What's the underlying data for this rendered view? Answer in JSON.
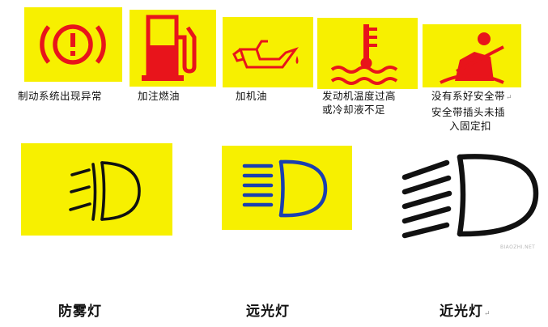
{
  "colors": {
    "panel": "#f7f000",
    "symbol_red": "#e8141b",
    "symbol_black": "#111111"
  },
  "icons": [
    {
      "name": "brake-warning-icon",
      "label": "制动系统出现异常",
      "mark": ""
    },
    {
      "name": "fuel-pump-icon",
      "label": "加注燃油",
      "mark": ""
    },
    {
      "name": "oil-can-icon",
      "label": "加机油",
      "mark": ""
    },
    {
      "name": "coolant-temperature-icon",
      "label_lines": [
        "发动机温度过高",
        "或冷却液不足"
      ],
      "mark": ""
    },
    {
      "name": "seatbelt-warning-icon",
      "label_lines": [
        "没有系好安全带",
        "安全带插头未插",
        "入固定扣"
      ],
      "mark": "↵"
    },
    {
      "name": "fog-light-icon",
      "label": "防雾灯",
      "mark": ""
    },
    {
      "name": "high-beam-icon",
      "label": "远光灯",
      "mark": ""
    },
    {
      "name": "low-beam-icon",
      "label": "近光灯",
      "mark": "↵"
    }
  ],
  "watermark": "BIAOZHI.NET"
}
